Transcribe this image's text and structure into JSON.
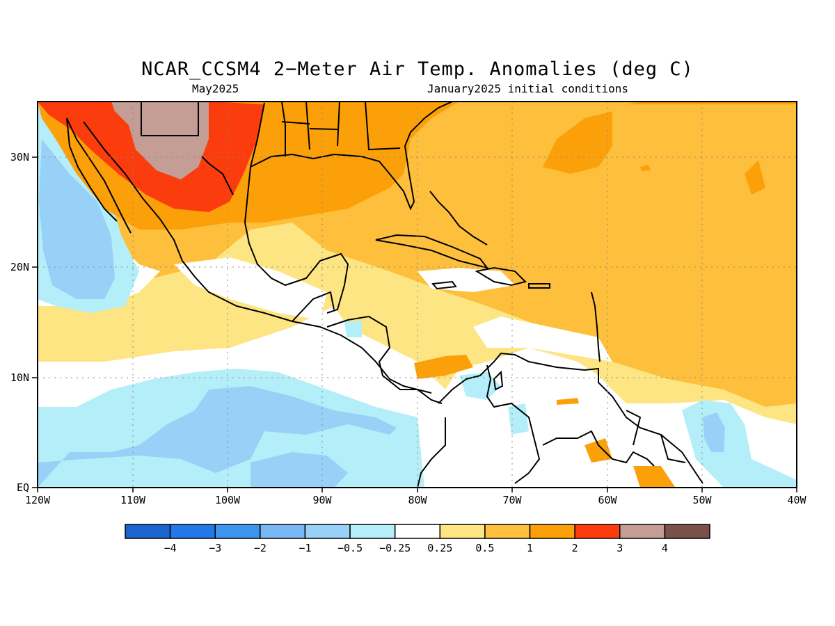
{
  "title": "NCAR_CCSM4 2−Meter Air Temp. Anomalies (deg C)",
  "subtitle_left": "May2025",
  "subtitle_right": "January2025 initial conditions",
  "axes": {
    "lon_labels": [
      "120W",
      "110W",
      "100W",
      "90W",
      "80W",
      "70W",
      "60W",
      "50W",
      "40W"
    ],
    "lat_labels": [
      "30N",
      "20N",
      "10N",
      "EQ"
    ]
  },
  "colorbar": {
    "colors": [
      "#1a64d0",
      "#2278e8",
      "#3c96f0",
      "#78b9f5",
      "#98d0f8",
      "#b4eef8",
      "#ffffff",
      "#fde583",
      "#fdbf3c",
      "#fca00a",
      "#fb3c0d",
      "#c49d95",
      "#7a5048"
    ],
    "tick_labels": [
      "−4",
      "−3",
      "−2",
      "−1",
      "−0.5",
      "−0.25",
      "0.25",
      "0.5",
      "1",
      "2",
      "3",
      "4"
    ]
  }
}
